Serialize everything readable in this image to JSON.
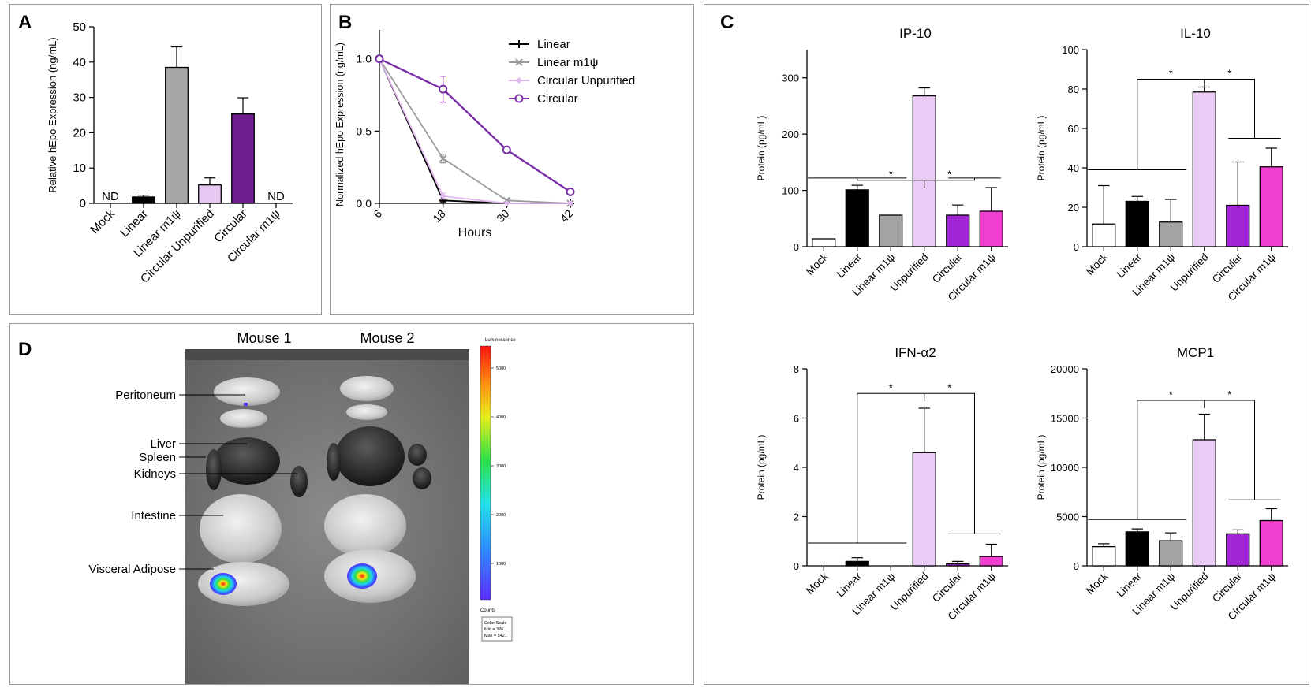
{
  "panels": {
    "A": {
      "letter": "A",
      "chart_data": {
        "type": "bar",
        "categories": [
          "Mock",
          "Linear",
          "Linear m1ψ",
          "Circular Unpurified",
          "Circular",
          "Circular m1ψ"
        ],
        "values": [
          0,
          1.8,
          38.5,
          5.2,
          25.3,
          0
        ],
        "errors": [
          0,
          0.5,
          5.8,
          2.0,
          4.6,
          0
        ],
        "colors": [
          "#ffffff",
          "#000000",
          "#a7a7a9",
          "#e8c8f2",
          "#6e1e8f",
          "#ffffff"
        ],
        "bar_labels": [
          "ND",
          "",
          "",
          "",
          "",
          "ND"
        ],
        "ylabel": "Relative hEpo Expression (ng/mL)",
        "ylim": [
          0,
          50
        ],
        "yticks": [
          0,
          10,
          20,
          30,
          40,
          50
        ],
        "ytick_labels": [
          "0",
          "10",
          "20",
          "30",
          "40",
          "50"
        ]
      }
    },
    "B": {
      "letter": "B",
      "chart_data": {
        "type": "line",
        "x": [
          6,
          18,
          30,
          42
        ],
        "xtick_labels": [
          "6",
          "18",
          "30",
          "42"
        ],
        "xlabel": "Hours",
        "ylabel": "Normalized hEpo Expression (ng/mL)",
        "ylim": [
          0,
          1.2
        ],
        "yticks": [
          0,
          0.5,
          1.0
        ],
        "ytick_labels": [
          "0.0",
          "0.5",
          "1.0"
        ],
        "series": [
          {
            "name": "Linear",
            "values": [
              1.0,
              0.02,
              0.0,
              0.0
            ],
            "errors": [
              0,
              0.01,
              0,
              0
            ],
            "color": "#000000",
            "marker": "plus"
          },
          {
            "name": "Linear m1ψ",
            "values": [
              1.0,
              0.31,
              0.02,
              0.0
            ],
            "errors": [
              0,
              0.03,
              0.01,
              0
            ],
            "color": "#9a9a9a",
            "marker": "x"
          },
          {
            "name": "Circular Unpurified",
            "values": [
              1.0,
              0.05,
              0.0,
              0.0
            ],
            "errors": [
              0,
              0.02,
              0,
              0
            ],
            "color": "#e2b8f0",
            "marker": "diamond"
          },
          {
            "name": "Circular",
            "values": [
              1.0,
              0.79,
              0.37,
              0.08
            ],
            "errors": [
              0,
              0.09,
              0.02,
              0.01
            ],
            "color": "#7a2fa6",
            "marker": "circle"
          }
        ],
        "legend_position": "top-right"
      }
    },
    "C": {
      "letter": "C",
      "categories": [
        "Mock",
        "Linear",
        "Linear m1ψ",
        "Unpurified",
        "Circular",
        "Circular m1ψ"
      ],
      "colors": [
        "#ffffff",
        "#000000",
        "#a3a3a6",
        "#eacbf6",
        "#a326d6",
        "#f03ed0"
      ],
      "sig_mark": "*",
      "charts": [
        {
          "title": "IP-10",
          "chart_data": {
            "type": "bar",
            "ylabel": "Protein (pg/mL)",
            "ylim": [
              0,
              350
            ],
            "yticks": [
              0,
              100,
              200,
              300
            ],
            "ytick_labels": [
              "0",
              "100",
              "200",
              "300"
            ],
            "values": [
              14,
              101,
              56,
              268,
              56,
              63
            ],
            "errors": [
              0,
              8,
              0,
              14,
              18,
              42
            ]
          },
          "layout": {
            "left": 55,
            "top": 20
          },
          "brackets": {
            "top": 118,
            "left_group": 122,
            "right_group": 122
          }
        },
        {
          "title": "IL-10",
          "chart_data": {
            "type": "bar",
            "ylabel": "Protein (pg/mL)",
            "ylim": [
              0,
              100
            ],
            "yticks": [
              0,
              20,
              40,
              60,
              80,
              100
            ],
            "ytick_labels": [
              "0",
              "20",
              "40",
              "60",
              "80",
              "100"
            ],
            "values": [
              11.5,
              23,
              12.5,
              78.5,
              21,
              40.5
            ],
            "errors": [
              19.5,
              2.5,
              11.5,
              2.5,
              22,
              9.5
            ]
          },
          "layout": {
            "left": 410,
            "top": 20
          },
          "brackets": {
            "top": 85,
            "left_group": 39,
            "right_group": 55
          }
        },
        {
          "title": "IFN-α2",
          "chart_data": {
            "type": "bar",
            "ylabel": "Protein (pg/mL)",
            "ylim": [
              0,
              8
            ],
            "yticks": [
              0,
              2,
              4,
              6,
              8
            ],
            "ytick_labels": [
              "0",
              "2",
              "4",
              "6",
              "8"
            ],
            "values": [
              0,
              0.18,
              0,
              4.6,
              0.08,
              0.38
            ],
            "errors": [
              0,
              0.15,
              0,
              1.8,
              0.1,
              0.5
            ]
          },
          "layout": {
            "left": 55,
            "top": 425
          },
          "brackets": {
            "top": 7.0,
            "left_group": 0.93,
            "right_group": 1.3
          }
        },
        {
          "title": "MCP1",
          "chart_data": {
            "type": "bar",
            "ylabel": "Protein (pg/mL)",
            "ylim": [
              0,
              20000
            ],
            "yticks": [
              0,
              5000,
              10000,
              15000,
              20000
            ],
            "ytick_labels": [
              "0",
              "5000",
              "10000",
              "15000",
              "20000"
            ],
            "values": [
              1950,
              3450,
              2550,
              12800,
              3250,
              4600
            ],
            "errors": [
              300,
              300,
              800,
              2600,
              400,
              1200
            ]
          },
          "layout": {
            "left": 410,
            "top": 425
          },
          "brackets": {
            "top": 16800,
            "left_group": 4700,
            "right_group": 6700
          }
        }
      ]
    },
    "D": {
      "letter": "D",
      "mouse_labels": [
        "Mouse 1",
        "Mouse 2"
      ],
      "organ_labels": [
        "Peritoneum",
        "Liver",
        "Spleen",
        "Kidneys",
        "Intestine",
        "Visceral Adipose"
      ],
      "colorbar": {
        "title": "Luminescence",
        "ticks": [
          "5000",
          "4000",
          "3000",
          "2000",
          "1000"
        ],
        "units": "Counts",
        "scale_title": "Color Scale",
        "scale_min": "Min = 326",
        "scale_max": "Max = 5421"
      }
    }
  }
}
